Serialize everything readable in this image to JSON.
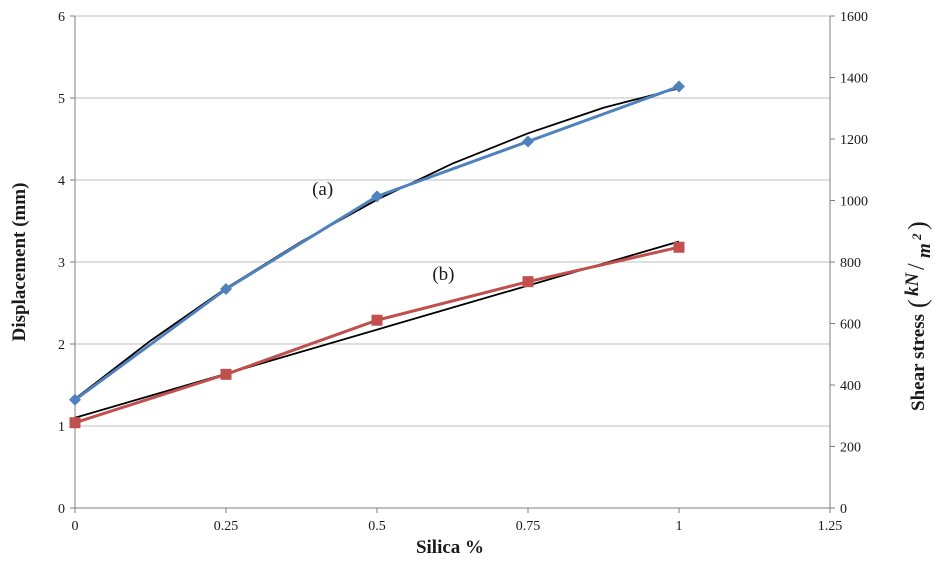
{
  "chart_data": {
    "type": "line",
    "xlabel": "Silica %",
    "ylabel_left": "Displacement (mm)",
    "ylabel_right": "Shear stress",
    "ylabel_right_unit": {
      "numerator": "kN",
      "denominator": "m",
      "exponent": "2"
    },
    "xlim": [
      0,
      1.25
    ],
    "x_ticks": [
      "0",
      "0.25",
      "0.5",
      "0.75",
      "1",
      "1.25"
    ],
    "ylim_left": [
      0,
      6
    ],
    "y_left_ticks": [
      "0",
      "1",
      "2",
      "3",
      "4",
      "5",
      "6"
    ],
    "ylim_right": [
      0,
      1600
    ],
    "y_right_ticks": [
      "0",
      "200",
      "400",
      "600",
      "800",
      "1000",
      "1200",
      "1400",
      "1600"
    ],
    "grid": "horizontal",
    "series": [
      {
        "name": "(a)",
        "axis": "left",
        "marker": "diamond",
        "color": "#4f81bd",
        "x": [
          0,
          0.25,
          0.5,
          0.75,
          1
        ],
        "y": [
          1.32,
          2.67,
          3.8,
          4.47,
          5.14
        ],
        "trend": {
          "color": "#000000",
          "x": [
            0,
            0.125,
            0.25,
            0.375,
            0.5,
            0.625,
            0.75,
            0.875,
            1
          ],
          "y": [
            1.33,
            2.04,
            2.68,
            3.25,
            3.76,
            4.2,
            4.57,
            4.88,
            5.12
          ]
        }
      },
      {
        "name": "(b)",
        "axis": "left",
        "marker": "square",
        "color": "#c0504d",
        "x": [
          0,
          0.25,
          0.5,
          0.75,
          1
        ],
        "y": [
          1.04,
          1.63,
          2.29,
          2.76,
          3.18
        ],
        "trend": {
          "color": "#000000",
          "x": [
            0,
            1
          ],
          "y": [
            1.1,
            3.25
          ]
        }
      }
    ]
  }
}
